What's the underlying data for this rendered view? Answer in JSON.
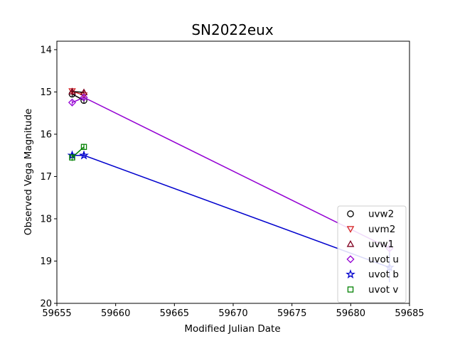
{
  "chart_data": {
    "type": "line",
    "title": "SN2022eux",
    "xlabel": "Modified Julian Date",
    "ylabel": "Observed Vega Magnitude",
    "xlim": [
      59655,
      59685
    ],
    "ylim": [
      20,
      13.8
    ],
    "y_inverted": true,
    "xticks": [
      59655,
      59660,
      59665,
      59670,
      59675,
      59680,
      59685
    ],
    "yticks": [
      14,
      15,
      16,
      17,
      18,
      19,
      20
    ],
    "grid": false,
    "legend_position": "lower-right",
    "series": [
      {
        "name": "uvw2",
        "marker": "circle",
        "color": "#000000",
        "line_color": "#000000",
        "x": [
          59656.3,
          59657.3
        ],
        "y": [
          15.05,
          15.2
        ],
        "err": [
          0.06,
          0.07
        ]
      },
      {
        "name": "uvm2",
        "marker": "triangle-down",
        "color": "#d62728",
        "line_color": "#d62728",
        "x": [
          59656.3,
          59657.3
        ],
        "y": [
          14.98,
          15.08
        ],
        "err": [
          0.05,
          0.06
        ]
      },
      {
        "name": "uvw1",
        "marker": "triangle-up",
        "color": "#800020",
        "line_color": "#000000",
        "x": [
          59656.3,
          59657.3
        ],
        "y": [
          14.99,
          15.01
        ],
        "err": [
          0.05,
          0.05
        ]
      },
      {
        "name": "uvot u",
        "marker": "diamond",
        "color": "#9400d3",
        "line_color": "#9400d3",
        "x": [
          59656.3,
          59657.3,
          59683.3
        ],
        "y": [
          15.25,
          15.13,
          18.7
        ],
        "err": [
          0.05,
          0.05,
          0.22
        ]
      },
      {
        "name": "uvot b",
        "marker": "star",
        "color": "#0000cd",
        "line_color": "#0000cd",
        "x": [
          59656.3,
          59657.3,
          59683.3
        ],
        "y": [
          16.5,
          16.5,
          19.15
        ],
        "err": [
          0.05,
          0.05,
          0.35
        ]
      },
      {
        "name": "uvot v",
        "marker": "square",
        "color": "#008000",
        "line_color": "#008000",
        "x": [
          59656.3,
          59657.3
        ],
        "y": [
          16.55,
          16.3
        ],
        "err": [
          0.08,
          0.07
        ]
      }
    ]
  }
}
